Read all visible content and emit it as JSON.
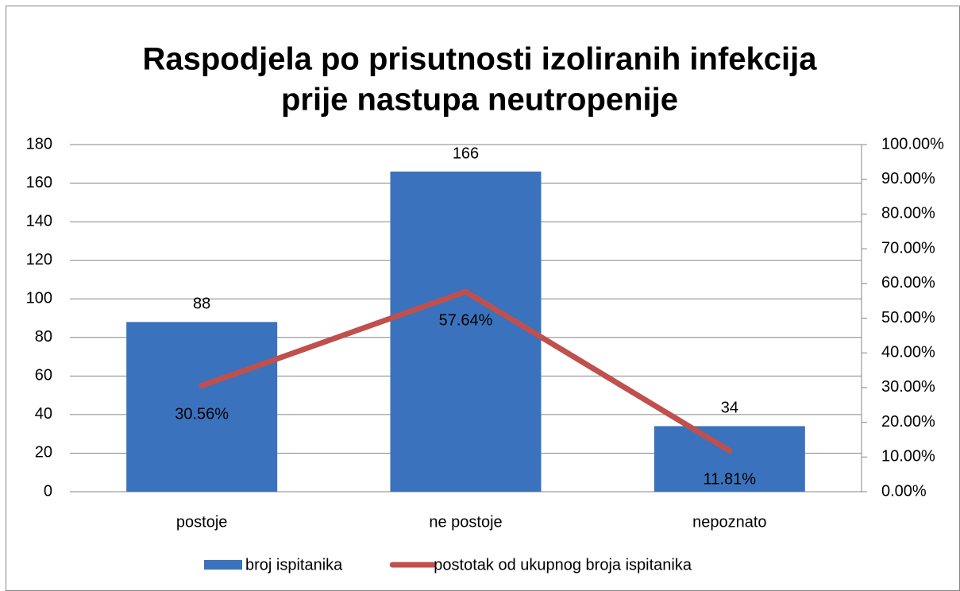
{
  "chart_data": {
    "type": "combo",
    "title": "Raspodjela po prisutnosti izoliranih infekcija",
    "subtitle": "prije nastupa neutropenije",
    "categories": [
      "postoje",
      "ne postoje",
      "nepoznato"
    ],
    "series": [
      {
        "name": "broj ispitanika",
        "type": "bar",
        "color": "#3a72bd",
        "values": [
          88,
          166,
          34
        ]
      },
      {
        "name": "postotak od ukupnog broja ispitanika",
        "type": "line",
        "axis": "y2",
        "color": "#c0504d",
        "values": [
          30.56,
          57.64,
          11.81
        ],
        "value_labels": [
          "30.56%",
          "57.64%",
          "11.81%"
        ]
      }
    ],
    "ylim": [
      0,
      180
    ],
    "yticks": [
      0,
      20,
      40,
      60,
      80,
      100,
      120,
      140,
      160,
      180
    ],
    "y2lim": [
      0,
      100
    ],
    "y2ticks": [
      {
        "value": 0,
        "label": "0.00%"
      },
      {
        "value": 10,
        "label": "10.00%"
      },
      {
        "value": 20,
        "label": "20.00%"
      },
      {
        "value": 30,
        "label": "30.00%"
      },
      {
        "value": 40,
        "label": "40.00%"
      },
      {
        "value": 50,
        "label": "50.00%"
      },
      {
        "value": 60,
        "label": "60.00%"
      },
      {
        "value": 70,
        "label": "70.00%"
      },
      {
        "value": 80,
        "label": "80.00%"
      },
      {
        "value": 90,
        "label": "90.00%"
      },
      {
        "value": 100,
        "label": "100.00%"
      }
    ],
    "grid": true,
    "legend": "bottom"
  }
}
